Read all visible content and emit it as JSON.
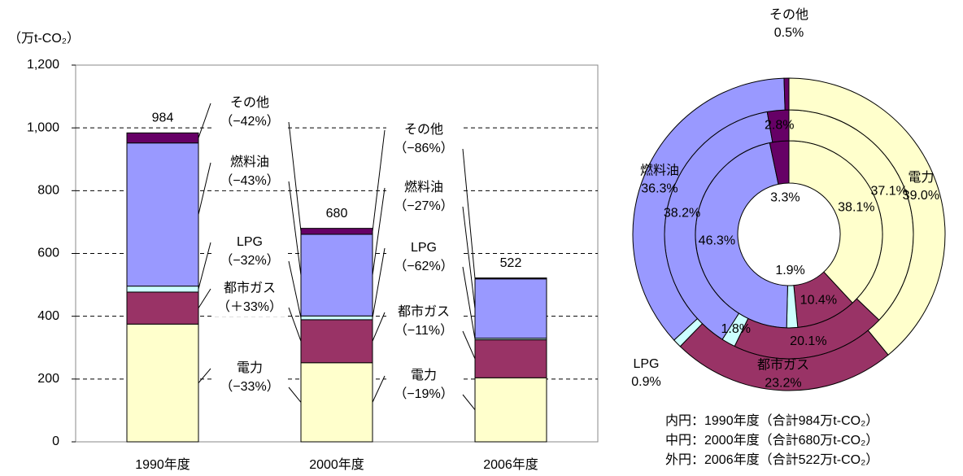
{
  "chart_data": [
    {
      "type": "bar",
      "y_label": "（万t-CO₂）",
      "categories": [
        "1990年度",
        "2000年度",
        "2006年度"
      ],
      "series": [
        {
          "name": "電力",
          "color": "#ffffcc",
          "values": [
            375,
            252,
            204
          ]
        },
        {
          "name": "都市ガス",
          "color": "#993366",
          "values": [
            102,
            137,
            121
          ]
        },
        {
          "name": "LPG",
          "color": "#ccffff",
          "values": [
            19,
            12,
            5
          ]
        },
        {
          "name": "燃料油",
          "color": "#9999ff",
          "values": [
            456,
            260,
            189
          ]
        },
        {
          "name": "その他",
          "color": "#660066",
          "values": [
            32,
            19,
            3
          ]
        }
      ],
      "totals": [
        984,
        680,
        522
      ],
      "annotations": [
        [
          {
            "name": "電力",
            "change": "（−33%）"
          },
          {
            "name": "都市ガス",
            "change": "（＋33%）"
          },
          {
            "name": "LPG",
            "change": "（−32%）"
          },
          {
            "name": "燃料油",
            "change": "（−43%）"
          },
          {
            "name": "その他",
            "change": "（−42%）"
          }
        ],
        [
          {
            "name": "電力",
            "change": "（−19%）"
          },
          {
            "name": "都市ガス",
            "change": "（−11%）"
          },
          {
            "name": "LPG",
            "change": "（−62%）"
          },
          {
            "name": "燃料油",
            "change": "（−27%）"
          },
          {
            "name": "その他",
            "change": "（−86%）"
          }
        ]
      ],
      "ylim": [
        0,
        1200
      ],
      "yticks": [
        0,
        200,
        400,
        600,
        800,
        {
          "value": 1000,
          "label": "1,000"
        },
        {
          "value": 1200,
          "label": "1,200"
        }
      ],
      "grid": true
    },
    {
      "type": "donut",
      "categories": [
        "電力",
        "都市ガス",
        "LPG",
        "燃料油",
        "その他"
      ],
      "colors": [
        "#ffffcc",
        "#993366",
        "#ccffff",
        "#9999ff",
        "#660066"
      ],
      "rings": [
        {
          "name": "内円：1990年度（合計984万t-CO₂）",
          "values": [
            38.1,
            10.4,
            1.9,
            46.3,
            3.3
          ],
          "value_labels": [
            "38.1%",
            "10.4%",
            "1.9%",
            "46.3%",
            "3.3%"
          ]
        },
        {
          "name": "中円：2000年度（合計680万t-CO₂）",
          "values": [
            37.1,
            20.1,
            1.8,
            38.2,
            2.8
          ],
          "value_labels": [
            "37.1%",
            "20.1%",
            "1.8%",
            "38.2%",
            "2.8%"
          ]
        },
        {
          "name": "外円：2006年度（合計522万t-CO₂）",
          "values": [
            39.0,
            23.2,
            0.9,
            36.3,
            0.5
          ],
          "value_labels": [
            "39.0%",
            "23.2%",
            "0.9%",
            "36.3%",
            "0.5%"
          ]
        }
      ]
    }
  ]
}
